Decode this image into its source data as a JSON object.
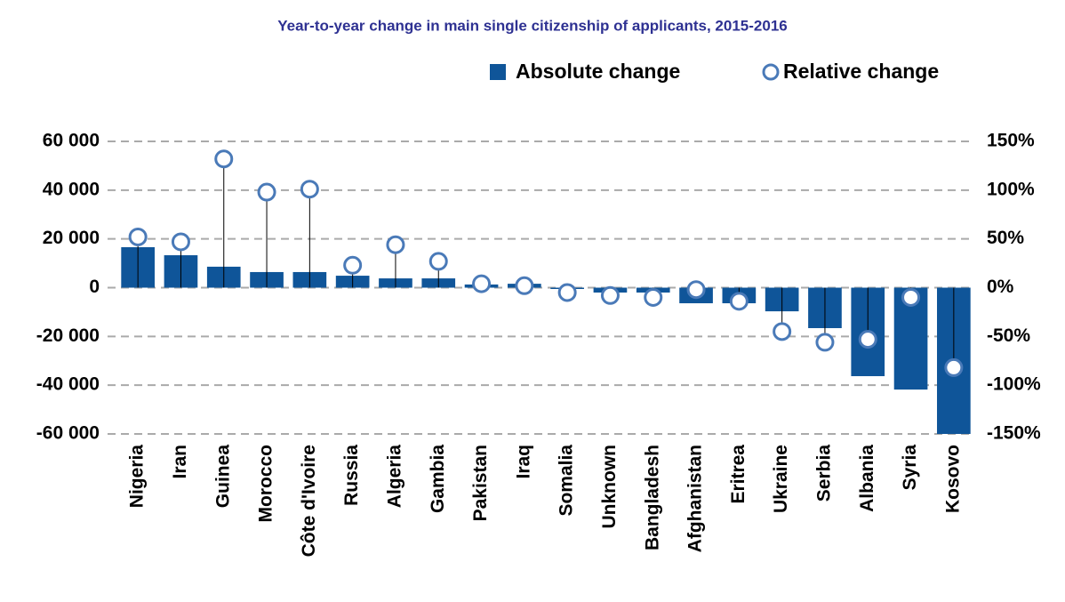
{
  "chart_data": {
    "type": "bar_dot",
    "title": "Year-to-year change in main single citizenship of applicants, 2015-2016",
    "categories": [
      "Nigeria",
      "Iran",
      "Guinea",
      "Morocco",
      "Côte d'Ivoire",
      "Russia",
      "Algeria",
      "Gambia",
      "Pakistan",
      "Iraq",
      "Somalia",
      "Unknown",
      "Bangladesh",
      "Afghanistan",
      "Eritrea",
      "Ukraine",
      "Serbia",
      "Albania",
      "Syria",
      "Kosovo"
    ],
    "series": [
      {
        "name": "Absolute change",
        "color": "#0f5599",
        "values": [
          16600,
          13300,
          8600,
          6400,
          6400,
          4900,
          3800,
          3800,
          1300,
          1600,
          -500,
          -2000,
          -2000,
          -6400,
          -6400,
          -9700,
          -16600,
          -36300,
          -41800,
          -60000
        ]
      },
      {
        "name": "Relative change",
        "color": "#4a7ab8",
        "axis": "y2",
        "values": [
          52,
          47,
          132,
          98,
          101,
          23,
          44,
          27,
          4,
          2,
          -5,
          -8,
          -10,
          -2,
          -14,
          -45,
          -56,
          -53,
          -10,
          -82
        ]
      }
    ],
    "ylim": [
      -60000,
      60000
    ],
    "yticks": [
      {
        "value": -60000,
        "label": "-60 000"
      },
      {
        "value": -40000,
        "label": "-40 000"
      },
      {
        "value": -20000,
        "label": "-20 000"
      },
      0,
      {
        "value": 20000,
        "label": "20 000"
      },
      {
        "value": 40000,
        "label": "40 000"
      },
      {
        "value": 60000,
        "label": "60 000"
      }
    ],
    "y2lim": [
      -150,
      150
    ],
    "y2ticks": [
      {
        "value": -150,
        "label": "-150%"
      },
      {
        "value": -100,
        "label": "-100%"
      },
      {
        "value": -50,
        "label": "-50%"
      },
      {
        "value": 0,
        "label": "0%"
      },
      {
        "value": 50,
        "label": "50%"
      },
      {
        "value": 100,
        "label": "100%"
      },
      {
        "value": 150,
        "label": "150%"
      }
    ],
    "grid": true
  }
}
